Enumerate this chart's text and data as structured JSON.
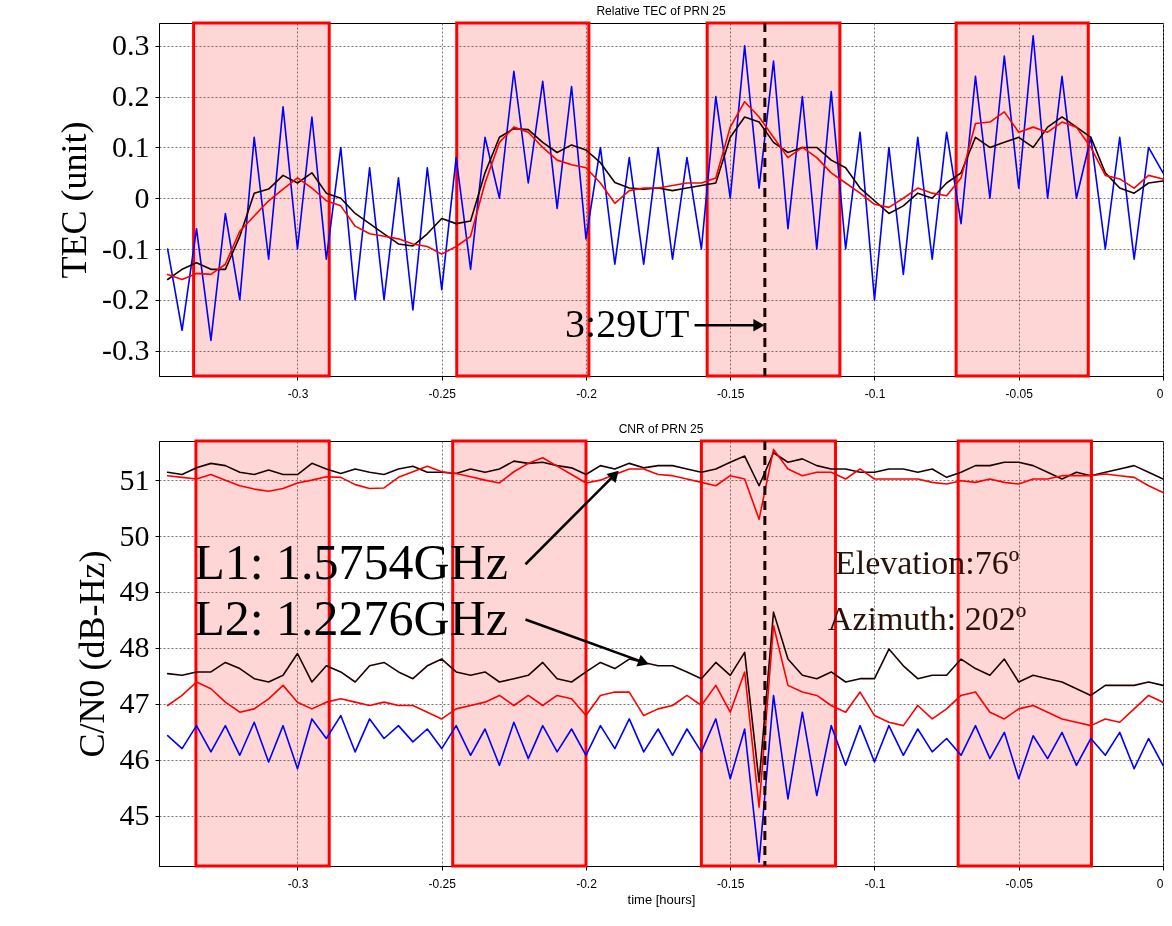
{
  "chart_data": [
    {
      "type": "line",
      "title": "Relative TEC of PRN 25",
      "ylabel": "TEC (unit)",
      "x": [
        -0.345,
        -0.34,
        -0.335,
        -0.33,
        -0.325,
        -0.32,
        -0.315,
        -0.31,
        -0.305,
        -0.3,
        -0.295,
        -0.29,
        -0.285,
        -0.28,
        -0.275,
        -0.27,
        -0.265,
        -0.26,
        -0.255,
        -0.25,
        -0.245,
        -0.24,
        -0.235,
        -0.23,
        -0.225,
        -0.22,
        -0.215,
        -0.21,
        -0.205,
        -0.2,
        -0.195,
        -0.19,
        -0.185,
        -0.18,
        -0.175,
        -0.17,
        -0.165,
        -0.16,
        -0.155,
        -0.15,
        -0.145,
        -0.14,
        -0.135,
        -0.13,
        -0.125,
        -0.12,
        -0.115,
        -0.11,
        -0.105,
        -0.1,
        -0.095,
        -0.09,
        -0.085,
        -0.08,
        -0.075,
        -0.07,
        -0.065,
        -0.06,
        -0.055,
        -0.05,
        -0.045,
        -0.04,
        -0.035,
        -0.03,
        -0.025,
        -0.02,
        -0.015,
        -0.01,
        -0.005,
        0
      ],
      "xlim": [
        -0.348,
        0
      ],
      "xticks": [
        -0.3,
        -0.25,
        -0.2,
        -0.15,
        -0.1,
        -0.05,
        0
      ],
      "ylim": [
        -0.35,
        0.345
      ],
      "yticks": [
        -0.3,
        -0.2,
        -0.1,
        0,
        0.1,
        0.2,
        0.3
      ],
      "grid": true,
      "series": [
        {
          "color": "#0000ff",
          "values": [
            -0.1,
            -0.26,
            -0.06,
            -0.28,
            -0.03,
            -0.2,
            0.12,
            -0.12,
            0.18,
            -0.1,
            0.16,
            -0.12,
            0.1,
            -0.2,
            0.06,
            -0.2,
            0.04,
            -0.22,
            0.06,
            -0.18,
            0.08,
            -0.14,
            0.12,
            0.0,
            0.25,
            0.03,
            0.23,
            -0.02,
            0.22,
            -0.08,
            0.1,
            -0.13,
            0.08,
            -0.13,
            0.1,
            -0.12,
            0.08,
            -0.1,
            0.2,
            0.0,
            0.3,
            0.02,
            0.27,
            -0.06,
            0.2,
            -0.1,
            0.21,
            -0.1,
            0.13,
            -0.2,
            0.1,
            -0.15,
            0.12,
            -0.12,
            0.13,
            -0.05,
            0.24,
            0.0,
            0.28,
            0.02,
            0.32,
            0.0,
            0.24,
            0.0,
            0.12,
            -0.1,
            0.12,
            -0.12,
            0.1,
            0.05
          ]
        },
        {
          "color": "#1a0000",
          "values": [
            -0.16,
            -0.14,
            -0.127,
            -0.14,
            -0.14,
            -0.075,
            0.01,
            0.018,
            0.045,
            0.03,
            0.05,
            0.01,
            0.0,
            -0.03,
            -0.05,
            -0.07,
            -0.09,
            -0.094,
            -0.07,
            -0.04,
            -0.05,
            -0.045,
            0.05,
            0.12,
            0.137,
            0.135,
            0.11,
            0.09,
            0.105,
            0.095,
            0.07,
            0.031,
            0.02,
            0.018,
            0.02,
            0.015,
            0.02,
            0.025,
            0.03,
            0.12,
            0.16,
            0.15,
            0.11,
            0.09,
            0.1,
            0.1,
            0.075,
            0.06,
            0.02,
            -0.005,
            -0.03,
            -0.015,
            0.01,
            0.0,
            0.03,
            0.05,
            0.12,
            0.1,
            0.11,
            0.12,
            0.1,
            0.14,
            0.16,
            0.14,
            0.12,
            0.05,
            0.02,
            0.01,
            0.03,
            0.034
          ]
        },
        {
          "color": "#ff0000",
          "values": [
            -0.15,
            -0.16,
            -0.148,
            -0.15,
            -0.13,
            -0.065,
            -0.035,
            -0.005,
            0.018,
            0.04,
            0.02,
            -0.005,
            -0.015,
            -0.055,
            -0.07,
            -0.075,
            -0.08,
            -0.09,
            -0.095,
            -0.11,
            -0.095,
            -0.075,
            0.03,
            0.11,
            0.14,
            0.13,
            0.1,
            0.075,
            0.066,
            0.06,
            0.03,
            -0.01,
            0.015,
            0.02,
            0.02,
            0.025,
            0.03,
            0.03,
            0.04,
            0.14,
            0.19,
            0.16,
            0.12,
            0.08,
            0.1,
            0.08,
            0.05,
            0.03,
            0.01,
            -0.012,
            -0.018,
            0.0,
            0.02,
            0.01,
            0.005,
            0.04,
            0.147,
            0.15,
            0.17,
            0.13,
            0.14,
            0.13,
            0.15,
            0.14,
            0.1,
            0.045,
            0.038,
            0.02,
            0.045,
            0.038
          ]
        }
      ],
      "bands": [
        {
          "axis": "x",
          "from": -0.336,
          "to": -0.289,
          "color": "#ff0000"
        },
        {
          "axis": "x",
          "from": -0.2448,
          "to": -0.199,
          "color": "#ff0000"
        },
        {
          "axis": "x",
          "from": -0.158,
          "to": -0.112,
          "color": "#ff0000"
        },
        {
          "axis": "x",
          "from": -0.0717,
          "to": -0.0259,
          "color": "#ff0000"
        }
      ],
      "ref_lines": [
        {
          "axis": "x",
          "value": -0.138,
          "color": "#1a0000",
          "line_style": "dashed"
        }
      ],
      "annotations": [
        {
          "text": "3:29UT",
          "x": -0.138,
          "y": -0.25
        }
      ]
    },
    {
      "type": "line",
      "title": "CNR of PRN 25",
      "xlabel": "time [hours]",
      "ylabel": "C/N0 (dB-Hz)",
      "x": [
        -0.345,
        -0.34,
        -0.335,
        -0.33,
        -0.325,
        -0.32,
        -0.315,
        -0.31,
        -0.305,
        -0.3,
        -0.295,
        -0.29,
        -0.285,
        -0.28,
        -0.275,
        -0.27,
        -0.265,
        -0.26,
        -0.255,
        -0.25,
        -0.245,
        -0.24,
        -0.235,
        -0.23,
        -0.225,
        -0.22,
        -0.215,
        -0.21,
        -0.205,
        -0.2,
        -0.195,
        -0.19,
        -0.185,
        -0.18,
        -0.175,
        -0.17,
        -0.165,
        -0.16,
        -0.155,
        -0.15,
        -0.145,
        -0.14,
        -0.135,
        -0.13,
        -0.125,
        -0.12,
        -0.115,
        -0.11,
        -0.105,
        -0.1,
        -0.095,
        -0.09,
        -0.085,
        -0.08,
        -0.075,
        -0.07,
        -0.065,
        -0.06,
        -0.055,
        -0.05,
        -0.045,
        -0.04,
        -0.035,
        -0.03,
        -0.025,
        -0.02,
        -0.015,
        -0.01,
        -0.005,
        0
      ],
      "xlim": [
        -0.348,
        0
      ],
      "xticks": [
        -0.3,
        -0.25,
        -0.2,
        -0.15,
        -0.1,
        -0.05,
        0
      ],
      "ylim": [
        44.1,
        51.7
      ],
      "yticks": [
        45,
        46,
        47,
        48,
        49,
        50,
        51
      ],
      "grid": true,
      "series": [
        {
          "color": "#0000ff",
          "values": [
            46.43,
            46.2,
            46.61,
            46.14,
            46.61,
            46.08,
            46.67,
            45.96,
            46.61,
            45.84,
            46.73,
            46.38,
            46.79,
            46.14,
            46.73,
            46.38,
            46.61,
            46.32,
            46.55,
            46.2,
            46.61,
            46.08,
            46.55,
            45.9,
            46.67,
            46.02,
            46.61,
            46.14,
            46.55,
            46.08,
            46.61,
            46.2,
            46.73,
            46.14,
            46.55,
            46.08,
            46.55,
            46.14,
            46.73,
            45.66,
            46.55,
            44.17,
            47.15,
            45.3,
            46.85,
            45.36,
            46.61,
            45.9,
            46.61,
            45.96,
            46.61,
            46.08,
            46.55,
            46.14,
            46.38,
            46.08,
            46.61,
            46.02,
            46.49,
            45.66,
            46.43,
            46.02,
            46.49,
            45.9,
            46.38,
            46.08,
            46.49,
            45.84,
            46.38,
            45.9
          ]
        },
        {
          "color": "#1a0000",
          "values": [
            51.14,
            51.1,
            51.22,
            51.3,
            51.26,
            51.14,
            51.1,
            51.18,
            51.1,
            51.1,
            51.3,
            51.2,
            51.12,
            51.2,
            51.14,
            51.1,
            51.2,
            51.25,
            51.14,
            51.14,
            51.12,
            51.2,
            51.14,
            51.2,
            51.34,
            51.3,
            51.32,
            51.26,
            51.22,
            51.1,
            51.26,
            51.2,
            51.3,
            51.22,
            51.26,
            51.26,
            51.2,
            51.14,
            51.2,
            51.32,
            51.43,
            50.9,
            51.49,
            51.32,
            51.38,
            51.26,
            51.2,
            51.2,
            51.14,
            51.14,
            51.2,
            51.2,
            51.14,
            51.2,
            51.05,
            51.14,
            51.26,
            51.26,
            51.32,
            51.32,
            51.26,
            51.14,
            51.02,
            51.14,
            51.08,
            51.14,
            51.2,
            51.26,
            51.14,
            51.02
          ]
        },
        {
          "color": "#ff0000",
          "values": [
            51.08,
            51.05,
            51.02,
            51.1,
            51.0,
            50.9,
            50.84,
            50.8,
            50.85,
            50.95,
            51.0,
            51.06,
            51.05,
            50.92,
            50.85,
            50.86,
            51.05,
            51.15,
            51.25,
            51.15,
            51.12,
            51.06,
            51.0,
            50.95,
            51.15,
            51.3,
            51.4,
            51.25,
            51.1,
            50.95,
            51.0,
            51.1,
            51.2,
            51.2,
            51.1,
            51.08,
            51.02,
            50.96,
            50.9,
            51.08,
            51.02,
            50.3,
            51.55,
            51.2,
            51.08,
            51.14,
            51.14,
            51.02,
            51.2,
            51.02,
            51.02,
            51.02,
            51.02,
            50.96,
            50.93,
            50.99,
            50.96,
            51.02,
            50.96,
            50.93,
            51.02,
            51.02,
            51.08,
            51.08,
            51.08,
            51.11,
            51.08,
            51.05,
            50.9,
            50.78
          ]
        },
        {
          "color": "#1a0000",
          "values": [
            47.54,
            47.51,
            47.57,
            47.57,
            47.74,
            47.63,
            47.45,
            47.39,
            47.51,
            47.9,
            47.39,
            47.68,
            47.57,
            47.39,
            47.68,
            47.74,
            47.57,
            47.45,
            47.68,
            47.8,
            47.57,
            47.51,
            47.57,
            47.39,
            47.45,
            47.51,
            47.74,
            47.45,
            47.39,
            47.57,
            47.74,
            47.63,
            47.8,
            47.74,
            47.68,
            47.68,
            47.57,
            47.45,
            47.74,
            47.51,
            47.92,
            45.6,
            48.64,
            47.8,
            47.51,
            47.45,
            47.57,
            47.39,
            47.45,
            47.45,
            47.98,
            47.68,
            47.45,
            47.51,
            47.51,
            47.8,
            47.63,
            47.51,
            47.8,
            47.39,
            47.51,
            47.45,
            47.39,
            47.27,
            47.15,
            47.33,
            47.33,
            47.33,
            47.39,
            47.33
          ]
        },
        {
          "color": "#ff0000",
          "values": [
            46.97,
            47.15,
            47.39,
            47.27,
            47.03,
            46.85,
            46.91,
            47.09,
            47.33,
            47.03,
            46.91,
            47.03,
            47.09,
            47.03,
            46.97,
            47.03,
            46.97,
            46.97,
            46.85,
            46.73,
            46.91,
            46.97,
            47.03,
            47.15,
            46.97,
            47.15,
            46.97,
            47.15,
            47.09,
            46.79,
            47.15,
            47.21,
            47.21,
            46.79,
            46.91,
            46.97,
            47.15,
            46.97,
            47.33,
            46.85,
            47.57,
            45.15,
            48.4,
            47.33,
            47.21,
            47.15,
            46.97,
            46.85,
            47.21,
            46.79,
            46.67,
            46.61,
            46.97,
            46.73,
            46.91,
            47.15,
            47.21,
            46.85,
            46.73,
            46.91,
            46.97,
            46.85,
            46.73,
            46.67,
            46.61,
            46.73,
            46.67,
            46.91,
            47.15,
            47.03
          ]
        }
      ],
      "bands": [
        {
          "axis": "x",
          "from": -0.3352,
          "to": -0.289,
          "color": "#ff0000"
        },
        {
          "axis": "x",
          "from": -0.2462,
          "to": -0.2,
          "color": "#ff0000"
        },
        {
          "axis": "x",
          "from": -0.16,
          "to": -0.1135,
          "color": "#ff0000"
        },
        {
          "axis": "x",
          "from": -0.071,
          "to": -0.0248,
          "color": "#ff0000"
        }
      ],
      "ref_lines": [
        {
          "axis": "x",
          "value": -0.138,
          "color": "#1a0000",
          "line_style": "dashed"
        }
      ],
      "annotations": [
        {
          "text": "L1: 1.5754GHz",
          "x": -0.19,
          "y": 51.1
        },
        {
          "text": "L2: 1.2276GHz",
          "x": -0.18,
          "y": 47.74
        },
        "Elevation:76º",
        "Azimuth: 202º"
      ]
    }
  ]
}
